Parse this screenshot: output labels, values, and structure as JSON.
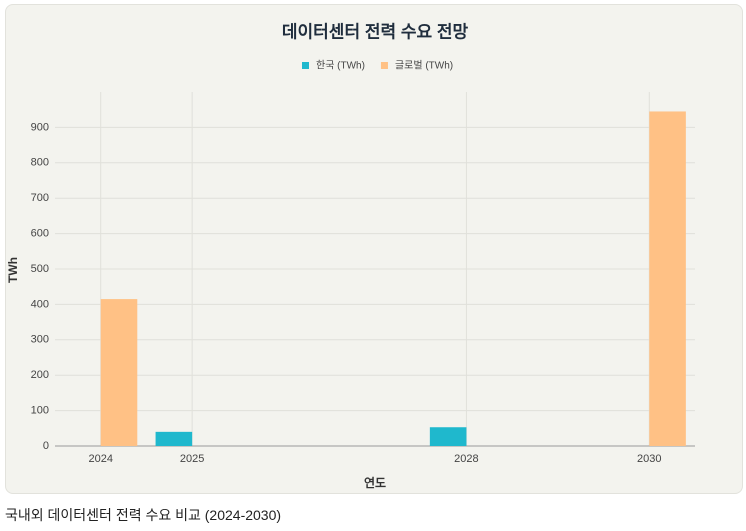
{
  "chart_data": {
    "type": "bar",
    "title": "데이터센터 전력 수요 전망",
    "caption": "국내외 데이터센터 전력 수요 비교 (2024-2030)",
    "x_label": "연도",
    "y_label": "TWh",
    "x": [
      2024,
      2025,
      2028,
      2030
    ],
    "series": [
      {
        "name": "한국 (TWh)",
        "color": "#1fb8cd",
        "values": [
          null,
          40,
          53,
          null
        ]
      },
      {
        "name": "글로벌 (TWh)",
        "color": "#ffc185",
        "values": [
          415,
          null,
          null,
          945
        ]
      }
    ],
    "xlim": [
      2023.5,
      2030.5
    ],
    "xticks": [
      2024,
      2025,
      2028,
      2030
    ],
    "ylim": [
      0,
      1000
    ],
    "yticks": [
      0,
      100,
      200,
      300,
      400,
      500,
      600,
      700,
      800,
      900
    ],
    "grid": true,
    "legend": "top"
  }
}
